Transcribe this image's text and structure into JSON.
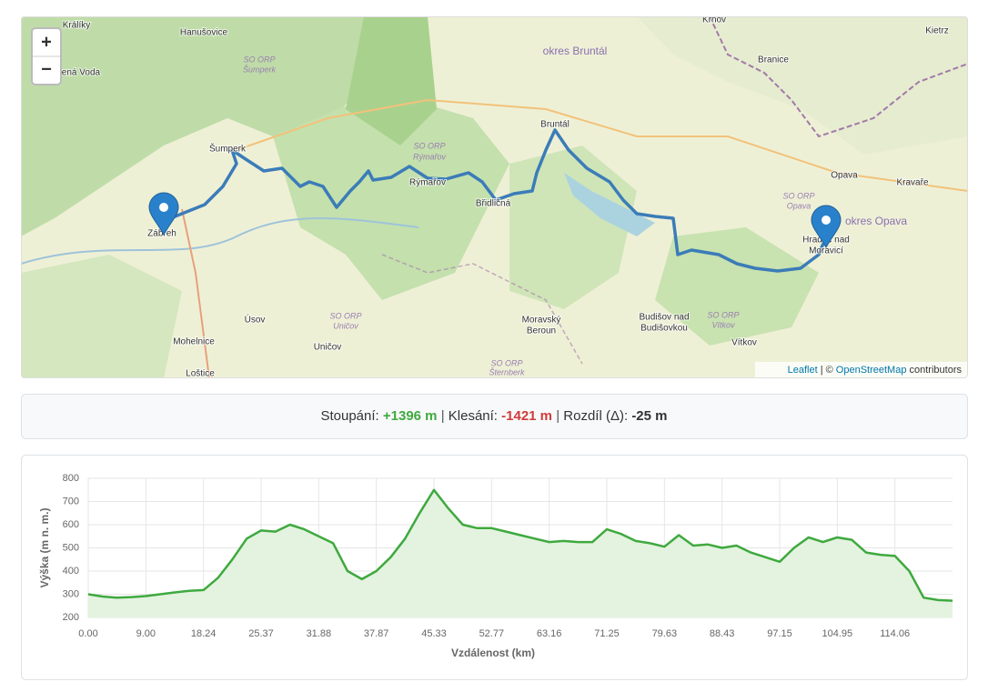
{
  "map": {
    "zoom_in": "+",
    "zoom_out": "−",
    "labels": [
      "Králíky",
      "Hanušovice",
      "SO ORP",
      "Šumperk",
      "ervená Voda",
      "okres Bruntál",
      "Krnov",
      "Branice",
      "Kietrz",
      "Šumperk",
      "SO ORP",
      "Rýmařov",
      "Rýmařov",
      "Bruntál",
      "Břidličná",
      "Opava",
      "Kravaře",
      "SO ORP",
      "Opava",
      "okres Opava",
      "Hradec nad",
      "Moravicí",
      "Zábřeh",
      "Úsov",
      "SO ORP",
      "Uničov",
      "Uničov",
      "Mohelnice",
      "Loštice",
      "Moravský",
      "Beroun",
      "Budišov nad",
      "Budišovkou",
      "SO ORP",
      "Vítkov",
      "Vítkov",
      "SO ORP",
      "Šternberk"
    ],
    "attribution": {
      "leaflet": "Leaflet",
      "separator": "| ©",
      "osm": "OpenStreetMap",
      "contributors": "contributors"
    }
  },
  "stats": {
    "ascent_label": "Stoupání:",
    "ascent": "+1396 m",
    "separator": "|",
    "descent_label": "Klesání:",
    "descent": "-1421 m",
    "diff_label": "Rozdíl (Δ):",
    "diff": "-25 m"
  },
  "chart_data": {
    "type": "area",
    "x_label": "Vzdálenost (km)",
    "y_label": "Výška (m n. m.)",
    "color": "#3fa93f",
    "fill": "#e3f3df",
    "categories": [
      "0.00",
      null,
      null,
      null,
      "9.00",
      null,
      null,
      null,
      "18.24",
      null,
      null,
      null,
      "25.37",
      null,
      null,
      null,
      "31.88",
      null,
      null,
      null,
      "37.87",
      null,
      null,
      null,
      "45.33",
      null,
      null,
      null,
      "52.77",
      null,
      null,
      null,
      "63.16",
      null,
      null,
      null,
      "71.25",
      null,
      null,
      null,
      "79.63",
      null,
      null,
      null,
      "88.43",
      null,
      null,
      null,
      "97.15",
      null,
      null,
      null,
      "104.95",
      null,
      null,
      null,
      "114.06",
      null,
      null,
      null,
      null
    ],
    "values": [
      300,
      290,
      285,
      288,
      292,
      300,
      308,
      315,
      318,
      370,
      450,
      540,
      575,
      570,
      600,
      580,
      550,
      520,
      400,
      365,
      400,
      460,
      540,
      650,
      750,
      670,
      600,
      585,
      585,
      570,
      555,
      540,
      525,
      530,
      525,
      525,
      580,
      560,
      530,
      520,
      505,
      555,
      510,
      515,
      500,
      510,
      480,
      460,
      440,
      500,
      545,
      525,
      545,
      535,
      480,
      470,
      465,
      400,
      285,
      275,
      272
    ],
    "ylim": [
      200,
      800
    ],
    "yticks": [
      200,
      300,
      400,
      500,
      600,
      700,
      800
    ],
    "grid": true
  }
}
